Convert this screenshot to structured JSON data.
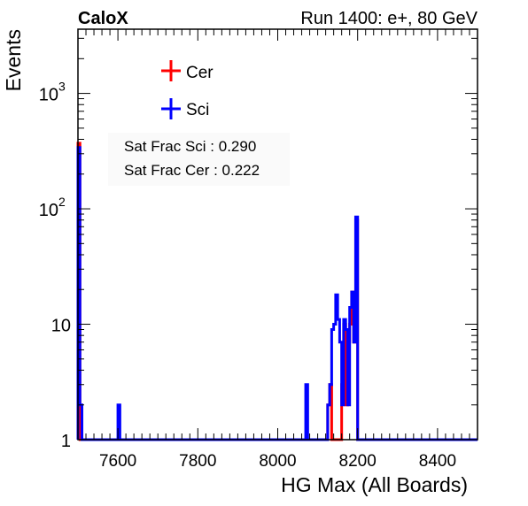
{
  "header": {
    "experiment": "CaloX",
    "run_info": "Run 1400: e+, 80 GeV"
  },
  "stats": {
    "sat_frac_sci": "Sat Frac Sci : 0.290",
    "sat_frac_cer": "Sat Frac Cer : 0.222"
  },
  "chart_data": {
    "type": "histogram",
    "xlabel": "HG Max (All Boards)",
    "ylabel": "Events",
    "xlim": [
      7500,
      8500
    ],
    "ylim": [
      1,
      3600
    ],
    "log_y": true,
    "grid": false,
    "legend_position": "top-left",
    "x_ticks": [
      7600,
      7800,
      8000,
      8200,
      8400
    ],
    "y_ticks": [
      {
        "value": 1,
        "label": "1"
      },
      {
        "value": 10,
        "label": "10"
      },
      {
        "value": 100,
        "label": "10",
        "exp": "2"
      },
      {
        "value": 1000,
        "label": "10",
        "exp": "3"
      }
    ],
    "bin_width": 5,
    "series": [
      {
        "name": "Cer",
        "color": "#ff0000",
        "bins": [
          {
            "x": 7500,
            "y": 370
          },
          {
            "x": 8125,
            "y": 2
          },
          {
            "x": 8130,
            "y": 3
          },
          {
            "x": 8135,
            "y": 1
          },
          {
            "x": 8160,
            "y": 3
          },
          {
            "x": 8165,
            "y": 10
          },
          {
            "x": 8170,
            "y": 2
          },
          {
            "x": 8175,
            "y": 7
          },
          {
            "x": 8180,
            "y": 10
          },
          {
            "x": 8185,
            "y": 19
          },
          {
            "x": 8190,
            "y": 7
          },
          {
            "x": 8195,
            "y": 80
          }
        ]
      },
      {
        "name": "Sci",
        "color": "#0000ff",
        "bins": [
          {
            "x": 7500,
            "y": 340
          },
          {
            "x": 7505,
            "y": 2
          },
          {
            "x": 7600,
            "y": 2
          },
          {
            "x": 8070,
            "y": 3
          },
          {
            "x": 8125,
            "y": 2
          },
          {
            "x": 8130,
            "y": 3
          },
          {
            "x": 8135,
            "y": 9
          },
          {
            "x": 8140,
            "y": 10
          },
          {
            "x": 8145,
            "y": 18
          },
          {
            "x": 8150,
            "y": 11
          },
          {
            "x": 8155,
            "y": 7
          },
          {
            "x": 8160,
            "y": 2
          },
          {
            "x": 8165,
            "y": 11
          },
          {
            "x": 8170,
            "y": 9
          },
          {
            "x": 8175,
            "y": 2
          },
          {
            "x": 8180,
            "y": 14
          },
          {
            "x": 8185,
            "y": 19
          },
          {
            "x": 8190,
            "y": 7
          },
          {
            "x": 8195,
            "y": 85
          }
        ]
      }
    ]
  }
}
